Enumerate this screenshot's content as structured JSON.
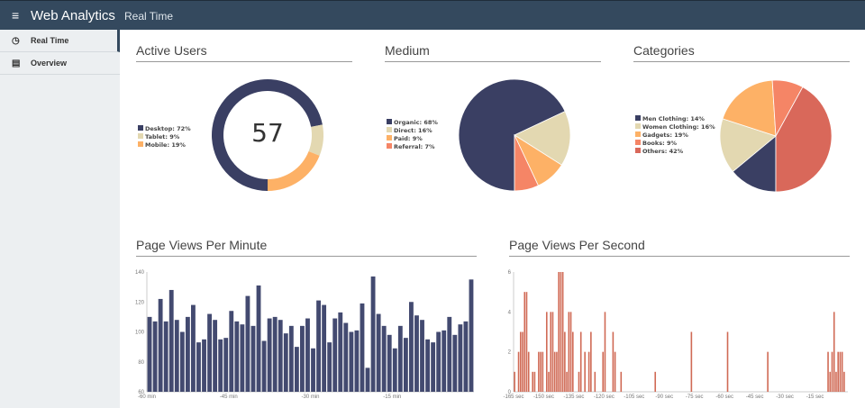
{
  "header": {
    "app_title": "Web Analytics",
    "breadcrumb": "Real Time",
    "menu_icon": "hamburger-icon"
  },
  "sidebar": {
    "items": [
      {
        "label": "Real Time",
        "icon": "clock-icon",
        "active": true
      },
      {
        "label": "Overview",
        "icon": "dashboard-icon",
        "active": false
      }
    ]
  },
  "colors": {
    "navy": "#3a3f63",
    "beige": "#e3d8b1",
    "orange": "#fdb166",
    "salmon": "#f58566",
    "red": "#d9685a",
    "bar": "#434a70"
  },
  "active_users": {
    "title": "Active Users",
    "count": "57",
    "slices": [
      {
        "label": "Desktop: 72%",
        "value": 72,
        "color": "#3a3f63"
      },
      {
        "label": "Tablet: 9%",
        "value": 9,
        "color": "#e3d8b1"
      },
      {
        "label": "Mobile: 19%",
        "value": 19,
        "color": "#fdb166"
      }
    ]
  },
  "medium": {
    "title": "Medium",
    "slices": [
      {
        "label": "Organic: 68%",
        "value": 68,
        "color": "#3a3f63"
      },
      {
        "label": "Direct: 16%",
        "value": 16,
        "color": "#e3d8b1"
      },
      {
        "label": "Paid: 9%",
        "value": 9,
        "color": "#fdb166"
      },
      {
        "label": "Referral: 7%",
        "value": 7,
        "color": "#f58566"
      }
    ]
  },
  "categories": {
    "title": "Categories",
    "slices": [
      {
        "label": "Men Clothing: 14%",
        "value": 14,
        "color": "#3a3f63"
      },
      {
        "label": "Women Clothing: 16%",
        "value": 16,
        "color": "#e3d8b1"
      },
      {
        "label": "Gadgets: 19%",
        "value": 19,
        "color": "#fdb166"
      },
      {
        "label": "Books: 9%",
        "value": 9,
        "color": "#f58566"
      },
      {
        "label": "Others: 42%",
        "value": 42,
        "color": "#d9685a"
      }
    ]
  },
  "chart_data": [
    {
      "type": "bar",
      "title": "Page Views Per Minute",
      "ylim": [
        60,
        140
      ],
      "yticks": [
        "60",
        "80",
        "100",
        "120",
        "140"
      ],
      "xticks": [
        "-60 min",
        "-45 min",
        "-30 min",
        "-15 min"
      ],
      "values": [
        110,
        107,
        122,
        107,
        128,
        108,
        100,
        110,
        118,
        93,
        95,
        112,
        108,
        95,
        96,
        114,
        107,
        105,
        124,
        104,
        131,
        94,
        109,
        110,
        108,
        99,
        104,
        90,
        104,
        109,
        89,
        121,
        118,
        93,
        109,
        113,
        106,
        100,
        101,
        119,
        76,
        137,
        112,
        104,
        98,
        89,
        104,
        96,
        120,
        111,
        108,
        95,
        93,
        100,
        101,
        110,
        98,
        105,
        107,
        135
      ]
    },
    {
      "type": "bar",
      "title": "Page Views Per Second",
      "ylim": [
        0,
        6
      ],
      "xlim": [
        -165,
        0
      ],
      "yticks": [
        "0",
        "2",
        "4",
        "6"
      ],
      "xticks": [
        "-165 sec",
        "-150 sec",
        "-135 sec",
        "-120 sec",
        "-105 sec",
        "-90 sec",
        "-75 sec",
        "-60 sec",
        "-45 sec",
        "-30 sec",
        "-15 sec"
      ],
      "points": [
        [
          -165,
          1
        ],
        [
          -163,
          2
        ],
        [
          -162,
          3
        ],
        [
          -161,
          3
        ],
        [
          -160,
          5
        ],
        [
          -159,
          5
        ],
        [
          -158,
          2
        ],
        [
          -156,
          1
        ],
        [
          -155,
          1
        ],
        [
          -153,
          2
        ],
        [
          -152,
          2
        ],
        [
          -151,
          2
        ],
        [
          -149,
          4
        ],
        [
          -148,
          1
        ],
        [
          -147,
          4
        ],
        [
          -146,
          4
        ],
        [
          -145,
          2
        ],
        [
          -144,
          2
        ],
        [
          -143,
          6
        ],
        [
          -142,
          6
        ],
        [
          -141,
          6
        ],
        [
          -140,
          3
        ],
        [
          -139,
          1
        ],
        [
          -138,
          4
        ],
        [
          -137,
          4
        ],
        [
          -136,
          3
        ],
        [
          -133,
          1
        ],
        [
          -132,
          3
        ],
        [
          -130,
          2
        ],
        [
          -128,
          2
        ],
        [
          -127,
          3
        ],
        [
          -125,
          1
        ],
        [
          -121,
          2
        ],
        [
          -120,
          4
        ],
        [
          -116,
          3
        ],
        [
          -115,
          2
        ],
        [
          -112,
          1
        ],
        [
          -95,
          1
        ],
        [
          -77,
          3
        ],
        [
          -59,
          3
        ],
        [
          -39,
          2
        ],
        [
          -9,
          2
        ],
        [
          -8,
          1
        ],
        [
          -7,
          2
        ],
        [
          -6,
          4
        ],
        [
          -5,
          1
        ],
        [
          -4,
          2
        ],
        [
          -3,
          2
        ],
        [
          -2,
          2
        ],
        [
          -1,
          1
        ]
      ]
    }
  ]
}
